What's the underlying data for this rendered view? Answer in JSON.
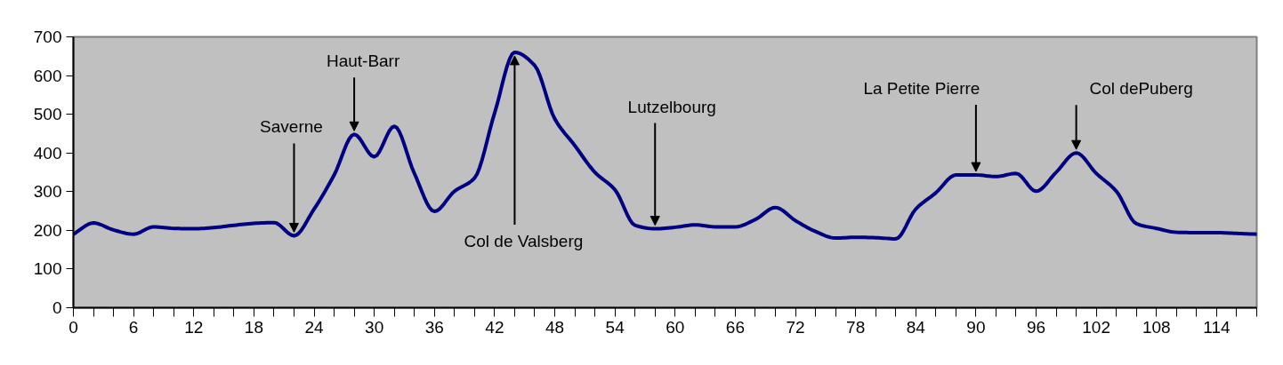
{
  "chart_data": {
    "type": "line",
    "color": "#000080",
    "grid": false,
    "x": [
      0,
      2,
      4,
      6,
      8,
      10,
      12,
      14,
      16,
      18,
      20,
      22,
      24,
      26,
      28,
      30,
      32,
      34,
      36,
      38,
      40,
      42,
      44,
      46,
      48,
      50,
      52,
      54,
      56,
      58,
      60,
      62,
      64,
      66,
      68,
      70,
      72,
      74,
      76,
      78,
      80,
      82,
      84,
      86,
      88,
      90,
      92,
      94,
      96,
      98,
      100,
      102,
      104,
      106,
      108,
      110,
      112,
      114,
      116,
      118
    ],
    "values": [
      190,
      219,
      201,
      190,
      209,
      205,
      204,
      207,
      213,
      218,
      220,
      186,
      255,
      343,
      448,
      390,
      469,
      347,
      249,
      301,
      335,
      503,
      660,
      626,
      488,
      419,
      350,
      305,
      213,
      204,
      208,
      214,
      209,
      209,
      228,
      259,
      225,
      197,
      180,
      182,
      181,
      178,
      255,
      297,
      343,
      343,
      339,
      347,
      301,
      350,
      400,
      347,
      301,
      217,
      205,
      195,
      194,
      194,
      192,
      190
    ],
    "xlim": [
      0,
      118
    ],
    "ylim": [
      0,
      700
    ],
    "yticks": [
      0,
      100,
      200,
      300,
      400,
      500,
      600,
      700
    ],
    "xticks": [
      0,
      {
        "value": 2,
        "label": null
      },
      {
        "value": 4,
        "label": null
      },
      6,
      {
        "value": 8,
        "label": null
      },
      {
        "value": 10,
        "label": null
      },
      12,
      {
        "value": 14,
        "label": null
      },
      {
        "value": 16,
        "label": null
      },
      18,
      {
        "value": 20,
        "label": null
      },
      {
        "value": 22,
        "label": null
      },
      24,
      {
        "value": 26,
        "label": null
      },
      {
        "value": 28,
        "label": null
      },
      30,
      {
        "value": 32,
        "label": null
      },
      {
        "value": 34,
        "label": null
      },
      36,
      {
        "value": 38,
        "label": null
      },
      {
        "value": 40,
        "label": null
      },
      42,
      {
        "value": 44,
        "label": null
      },
      {
        "value": 46,
        "label": null
      },
      48,
      {
        "value": 50,
        "label": null
      },
      {
        "value": 52,
        "label": null
      },
      54,
      {
        "value": 56,
        "label": null
      },
      {
        "value": 58,
        "label": null
      },
      60,
      {
        "value": 62,
        "label": null
      },
      {
        "value": 64,
        "label": null
      },
      66,
      {
        "value": 68,
        "label": null
      },
      {
        "value": 70,
        "label": null
      },
      72,
      {
        "value": 74,
        "label": null
      },
      {
        "value": 76,
        "label": null
      },
      78,
      {
        "value": 80,
        "label": null
      },
      {
        "value": 82,
        "label": null
      },
      84,
      {
        "value": 86,
        "label": null
      },
      {
        "value": 88,
        "label": null
      },
      90,
      {
        "value": 92,
        "label": null
      },
      {
        "value": 94,
        "label": null
      },
      96,
      {
        "value": 98,
        "label": null
      },
      {
        "value": 100,
        "label": null
      },
      102,
      {
        "value": 104,
        "label": null
      },
      {
        "value": 106,
        "label": null
      },
      108,
      {
        "value": 110,
        "label": null
      },
      {
        "value": 112,
        "label": null
      },
      114,
      {
        "value": 116,
        "label": null
      },
      {
        "value": 118,
        "label": null
      }
    ],
    "annotations": [
      {
        "text": "Saverne",
        "x": 22,
        "y": 186
      },
      {
        "text": "Haut-Barr",
        "x": 28,
        "y": 448
      },
      {
        "text": "Col de Valsberg",
        "x": 44,
        "y": 660
      },
      {
        "text": "Lutzelbourg",
        "x": 58,
        "y": 204
      },
      {
        "text": "La Petite Pierre",
        "x": 90,
        "y": 343
      },
      {
        "text": "Col dePuberg",
        "x": 100,
        "y": 400
      }
    ]
  }
}
